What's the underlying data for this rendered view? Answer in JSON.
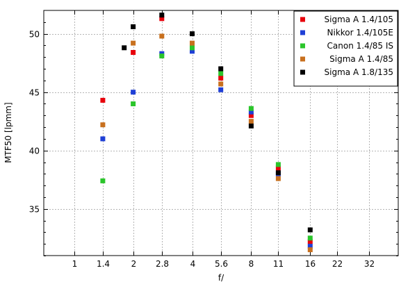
{
  "chart_data": {
    "type": "scatter",
    "xlabel": "f/",
    "ylabel": "MTF50 [lpmm]",
    "xscale": "log2",
    "x_ticks": [
      {
        "value": 1,
        "label": "1"
      },
      {
        "value": 1.4,
        "label": "1.4"
      },
      {
        "value": 2,
        "label": "2"
      },
      {
        "value": 2.8,
        "label": "2.8"
      },
      {
        "value": 4,
        "label": "4"
      },
      {
        "value": 5.6,
        "label": "5.6"
      },
      {
        "value": 8,
        "label": "8"
      },
      {
        "value": 11,
        "label": "11"
      },
      {
        "value": 16,
        "label": "16"
      },
      {
        "value": 22,
        "label": "22"
      },
      {
        "value": 32,
        "label": "32"
      }
    ],
    "xlim": [
      0.7,
      45
    ],
    "y_ticks": [
      35,
      40,
      45,
      50
    ],
    "ylim": [
      31,
      52
    ],
    "grid": true,
    "legend_position": "top-right",
    "series": [
      {
        "name": "Sigma A 1.4/105",
        "color": "#e8000b",
        "points": [
          [
            1.4,
            44.3
          ],
          [
            2,
            48.4
          ],
          [
            2.8,
            51.3
          ],
          [
            4,
            48.7
          ],
          [
            5.6,
            46.2
          ],
          [
            8,
            43.0
          ],
          [
            11,
            38.5
          ],
          [
            16,
            32.2
          ]
        ]
      },
      {
        "name": "Nikkor 1.4/105E",
        "color": "#1f3fd6",
        "points": [
          [
            1.4,
            41.0
          ],
          [
            2,
            45.0
          ],
          [
            2.8,
            48.3
          ],
          [
            4,
            48.5
          ],
          [
            5.6,
            45.2
          ],
          [
            8,
            43.3
          ],
          [
            11,
            38.0
          ],
          [
            16,
            31.8
          ]
        ]
      },
      {
        "name": "Canon 1.4/85 IS",
        "color": "#2bc52b",
        "points": [
          [
            1.4,
            37.4
          ],
          [
            2,
            44.0
          ],
          [
            2.8,
            48.1
          ],
          [
            4,
            48.8
          ],
          [
            5.6,
            46.6
          ],
          [
            8,
            43.6
          ],
          [
            11,
            38.8
          ],
          [
            16,
            32.5
          ]
        ]
      },
      {
        "name": "Sigma A 1.4/85",
        "color": "#c8701e",
        "points": [
          [
            1.4,
            42.2
          ],
          [
            2,
            49.2
          ],
          [
            2.8,
            49.8
          ],
          [
            4,
            49.2
          ],
          [
            5.6,
            45.7
          ],
          [
            8,
            42.5
          ],
          [
            11,
            37.6
          ],
          [
            16,
            31.5
          ]
        ]
      },
      {
        "name": "Sigma A 1.8/135",
        "color": "#000000",
        "points": [
          [
            1.8,
            48.8
          ],
          [
            2,
            50.6
          ],
          [
            2.8,
            51.6
          ],
          [
            4,
            50.0
          ],
          [
            5.6,
            47.0
          ],
          [
            8,
            42.1
          ],
          [
            11,
            38.1
          ],
          [
            16,
            33.2
          ]
        ]
      }
    ]
  }
}
